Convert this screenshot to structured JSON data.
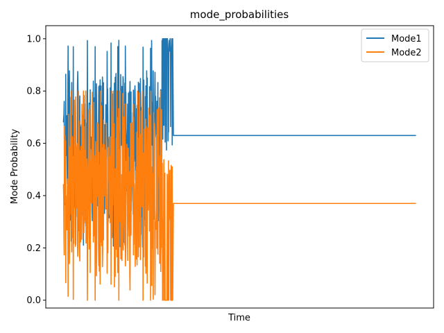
{
  "chart_data": {
    "type": "line",
    "title": "mode_probabilities",
    "xlabel": "Time",
    "ylabel": "Mode Probability",
    "ylim": [
      -0.03,
      1.05
    ],
    "xlim": [
      -0.05,
      1.05
    ],
    "y_ticks": [
      0.0,
      0.2,
      0.4,
      0.6,
      0.8,
      1.0
    ],
    "y_tick_labels": [
      "0.0",
      "0.2",
      "0.4",
      "0.6",
      "0.8",
      "1.0"
    ],
    "x_ticks_shown": false,
    "grid": false,
    "legend_position": "top-right",
    "noisy_region_end_fraction": 0.31,
    "series": [
      {
        "name": "Mode1",
        "color": "#1f77b4",
        "noisy_range": [
          0.2,
          1.0
        ],
        "noisy_typical_range": [
          0.3,
          0.88
        ],
        "steady_value": 0.63
      },
      {
        "name": "Mode2",
        "color": "#ff7f0e",
        "noisy_range": [
          0.0,
          0.8
        ],
        "noisy_typical_range": [
          0.12,
          0.7
        ],
        "steady_value": 0.37
      }
    ]
  }
}
